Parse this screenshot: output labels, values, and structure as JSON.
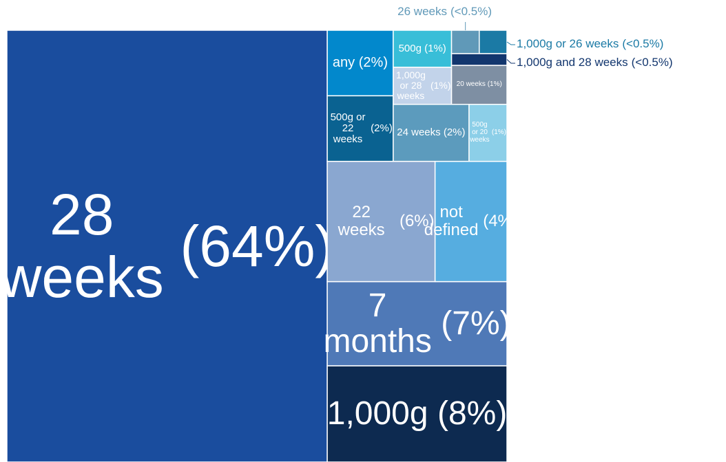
{
  "chart_data": {
    "type": "treemap",
    "categories": [
      "28 weeks",
      "1,000g",
      "7 months",
      "22 weeks",
      "not defined",
      "any",
      "500g or 22 weeks",
      "24 weeks",
      "500g or 20 weeks",
      "500g",
      "1,000g or 28 weeks",
      "20 weeks",
      "26 weeks",
      "1,000g or 26 weeks",
      "1,000g and 28 weeks"
    ],
    "values": [
      64,
      8,
      7,
      6,
      4,
      2,
      2,
      2,
      1,
      1,
      1,
      1,
      0.3,
      0.3,
      0.3
    ],
    "value_labels": [
      "(64%)",
      "(8%)",
      "(7%)",
      "(6%)",
      "(4%)",
      "(2%)",
      "(2%)",
      "(2%)",
      "(1%)",
      "(1%)",
      "(1%)",
      "(1%)",
      "(<0.5%)",
      "(<0.5%)",
      "(<0.5%)"
    ],
    "colors": [
      "#1a4d9e",
      "#0d2a50",
      "#4f79b7",
      "#8aa7d0",
      "#56ade0",
      "#0288cc",
      "#0a6291",
      "#5c9bbd",
      "#8ccfe8",
      "#38bed8",
      "#c2d3ea",
      "#7e8fa3",
      "#6099b8",
      "#1b7aa5",
      "#12366e"
    ]
  }
}
